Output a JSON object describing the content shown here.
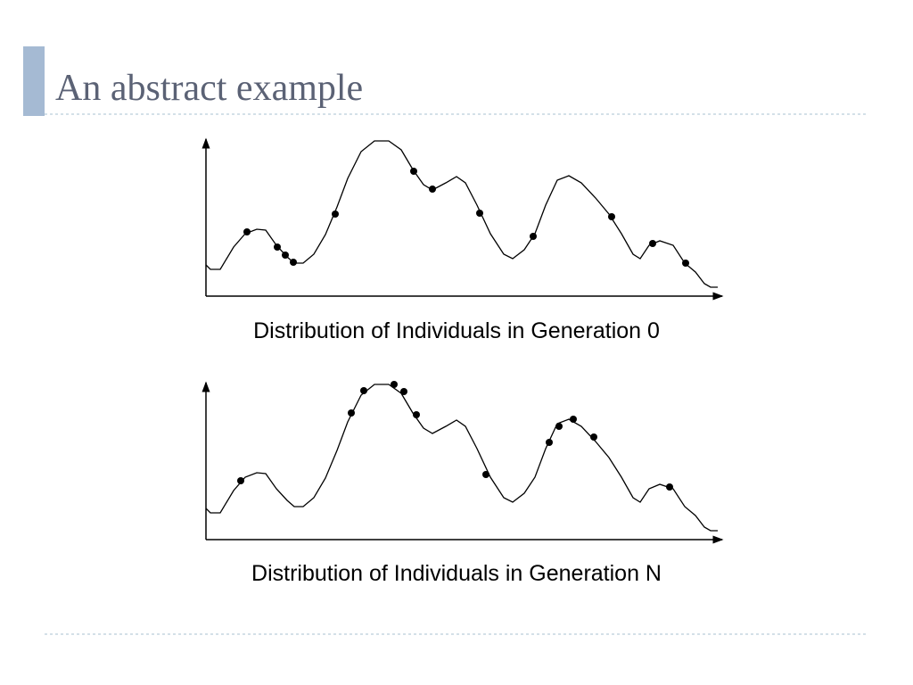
{
  "header": {
    "title": "An abstract example"
  },
  "diagrams": [
    {
      "caption": "Distribution of Individuals in Generation 0"
    },
    {
      "caption": "Distribution of Individuals in Generation N"
    }
  ]
}
